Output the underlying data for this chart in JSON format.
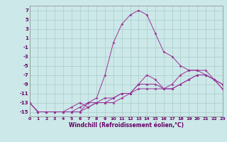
{
  "xlabel": "Windchill (Refroidissement éolien,°C)",
  "background_color": "#cce8e8",
  "grid_color": "#aacccc",
  "line_color": "#993399",
  "x": [
    0,
    1,
    2,
    3,
    4,
    5,
    6,
    7,
    8,
    9,
    10,
    11,
    12,
    13,
    14,
    15,
    16,
    17,
    18,
    19,
    20,
    21,
    22,
    23
  ],
  "line1": [
    -13,
    -15,
    -15,
    -15,
    -15,
    -15,
    -15,
    -14,
    -13,
    -13,
    -13,
    -12,
    -11,
    -9,
    -7,
    -8,
    -10,
    -9,
    -7,
    -6,
    -6,
    -6,
    -8,
    -9
  ],
  "line2": [
    -13,
    -15,
    -15,
    -15,
    -15,
    -15,
    -15,
    -13,
    -12,
    -7,
    0,
    4,
    6,
    7,
    6,
    2,
    -2,
    -3,
    -5,
    -6,
    -6,
    -7,
    -8,
    -9
  ],
  "line3": [
    -13,
    -15,
    -15,
    -15,
    -15,
    -14,
    -13,
    -14,
    -13,
    -12,
    -12,
    -11,
    -11,
    -10,
    -10,
    -10,
    -10,
    -10,
    -9,
    -8,
    -7,
    -7,
    -8,
    -10
  ],
  "line4": [
    -13,
    -15,
    -15,
    -15,
    -15,
    -15,
    -14,
    -13,
    -13,
    -13,
    -12,
    -11,
    -11,
    -9,
    -9,
    -9,
    -10,
    -10,
    -9,
    -8,
    -7,
    -7,
    -8,
    -10
  ],
  "xlim": [
    0,
    23
  ],
  "ylim": [
    -16,
    8
  ],
  "yticks": [
    7,
    5,
    3,
    1,
    -1,
    -3,
    -5,
    -7,
    -9,
    -11,
    -13,
    -15
  ],
  "xticks": [
    0,
    1,
    2,
    3,
    4,
    5,
    6,
    7,
    8,
    9,
    10,
    11,
    12,
    13,
    14,
    15,
    16,
    17,
    18,
    19,
    20,
    21,
    22,
    23
  ],
  "tick_color": "#660066",
  "tick_fontsize": 4.5,
  "xlabel_fontsize": 5.5
}
